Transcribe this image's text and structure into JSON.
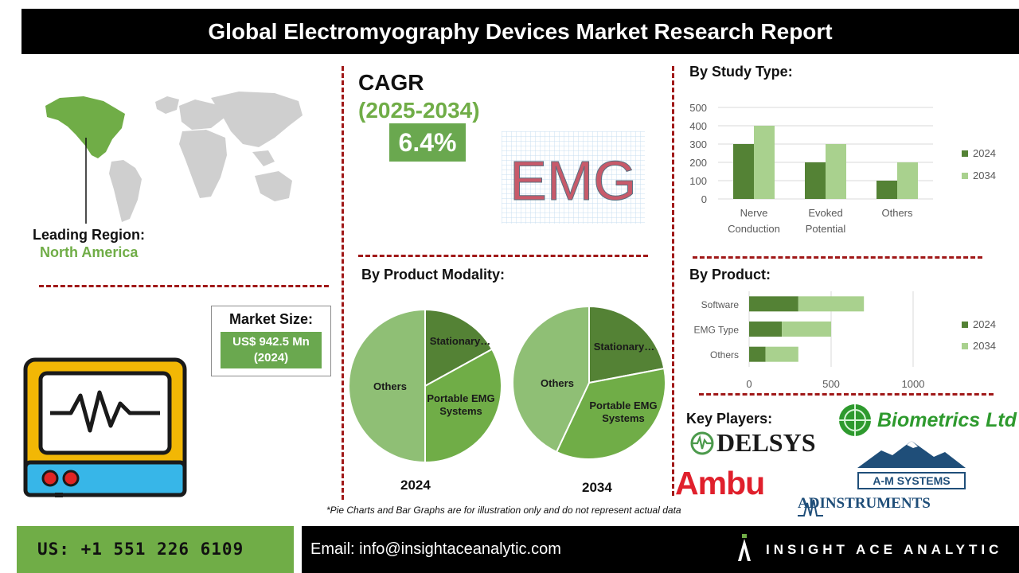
{
  "header": {
    "title": "Global Electromyography Devices Market Research Report"
  },
  "region": {
    "label": "Leading Region:",
    "value": "North America"
  },
  "cagr": {
    "title": "CAGR",
    "years": "(2025-2034)",
    "value": "6.4%"
  },
  "emg_logo": {
    "text": "EMG"
  },
  "market": {
    "label": "Market Size:",
    "value_line1": "US$ 942.5 Mn",
    "value_line2": "(2024)"
  },
  "sections": {
    "study_type": "By Study Type:",
    "product_modality": "By Product Modality:",
    "product": "By  Product:",
    "key_players": "Key Players:"
  },
  "colors": {
    "dark_green": "#548235",
    "mid_green": "#70ad47",
    "light_green": "#a9d18e",
    "pie_green": "#8fbf75",
    "dashed_red": "#a01818"
  },
  "key_players": [
    "DELSYS",
    "Biometrics Ltd",
    "Ambu",
    "A-M SYSTEMS",
    "ADINSTRUMENTS"
  ],
  "disclaimer": "*Pie Charts and Bar Graphs are for illustration only and do not represent actual data",
  "footer": {
    "phone": "US: +1 551 226 6109",
    "email": "Email: info@insightaceanalytic.com",
    "brand": "INSIGHT ACE ANALYTIC"
  },
  "chart_data": [
    {
      "type": "bar",
      "title": "By Study Type:",
      "categories": [
        "Nerve Conduction",
        "Evoked Potential",
        "Others"
      ],
      "series": [
        {
          "name": "2024",
          "values": [
            300,
            200,
            100
          ]
        },
        {
          "name": "2034",
          "values": [
            400,
            300,
            200
          ]
        }
      ],
      "ylim": [
        0,
        500
      ],
      "yticks": [
        0,
        100,
        200,
        300,
        400,
        500
      ],
      "grid": true,
      "legend": "right"
    },
    {
      "type": "pie",
      "title": "By Product Modality:",
      "subtitle": "2024",
      "labels": [
        "Stationary…",
        "Portable EMG Systems",
        "Others"
      ],
      "values": [
        17,
        33,
        50
      ]
    },
    {
      "type": "pie",
      "title": "By Product Modality:",
      "subtitle": "2034",
      "labels": [
        "Stationary…",
        "Portable EMG Systems",
        "Others"
      ],
      "values": [
        22,
        35,
        43
      ]
    },
    {
      "type": "bar",
      "orientation": "horizontal",
      "stacked": true,
      "title": "By  Product:",
      "categories": [
        "Software",
        "EMG Type",
        "Others"
      ],
      "series": [
        {
          "name": "2024",
          "values": [
            300,
            200,
            100
          ]
        },
        {
          "name": "2034",
          "values": [
            400,
            300,
            200
          ]
        }
      ],
      "xlim": [
        0,
        1200
      ],
      "xticks": [
        0,
        500,
        1000
      ],
      "grid": true,
      "legend": "right"
    }
  ]
}
